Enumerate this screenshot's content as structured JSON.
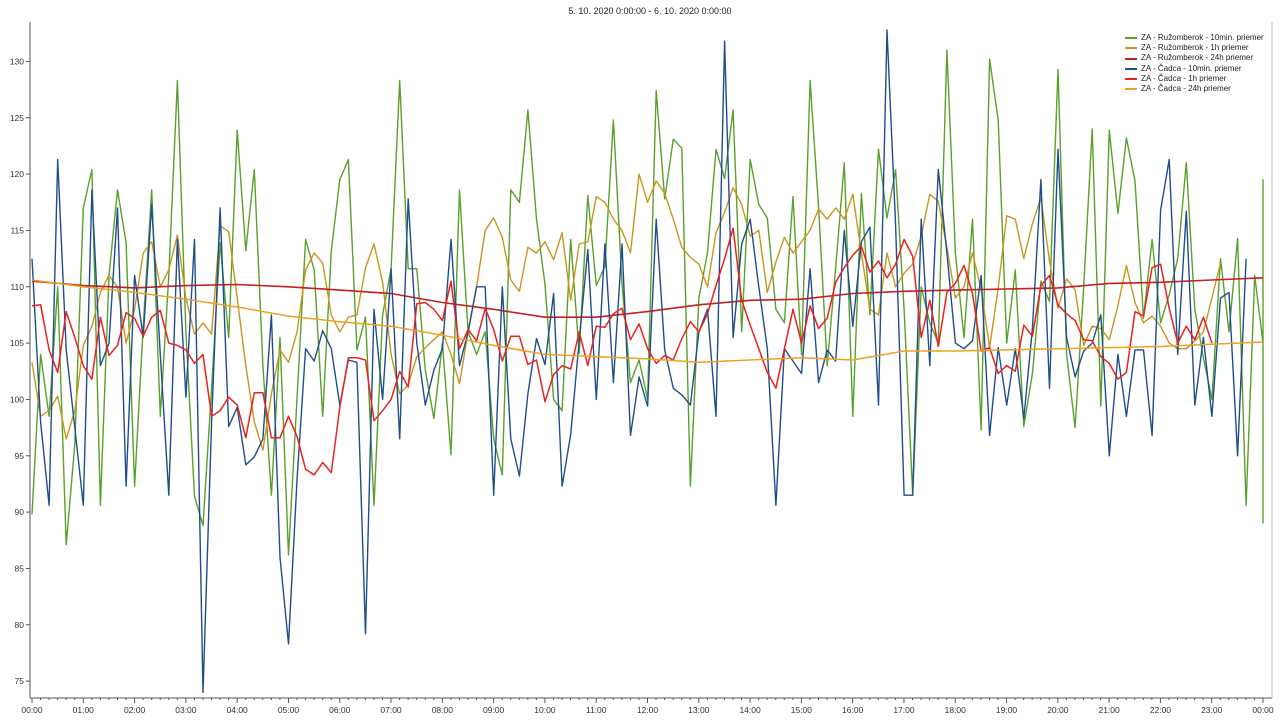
{
  "chart_data": {
    "type": "line",
    "title": "5. 10. 2020 0:00:00 - 6. 10. 2020 0:00:00",
    "xlabel": "",
    "ylabel": "",
    "xlim": [
      0,
      24
    ],
    "ylim": [
      73.5,
      133.5
    ],
    "x_ticks": [
      "00:00",
      "01:00",
      "02:00",
      "03:00",
      "04:00",
      "05:00",
      "06:00",
      "07:00",
      "08:00",
      "09:00",
      "10:00",
      "11:00",
      "12:00",
      "13:00",
      "14:00",
      "15:00",
      "16:00",
      "17:00",
      "18:00",
      "19:00",
      "20:00",
      "21:00",
      "22:00",
      "23:00",
      "00:00"
    ],
    "y_ticks": [
      75,
      80,
      85,
      90,
      95,
      100,
      105,
      110,
      115,
      120,
      125,
      130
    ],
    "grid": false,
    "legend_position": "top-right",
    "series": [
      {
        "name": "ZA - Ružomberok - 10min. priemer",
        "color": "#5aa02c",
        "width": 1.4,
        "interval_hours": 0.1667,
        "values": [
          89.8,
          104.0,
          98.5,
          110.0,
          87.1,
          96.0,
          117.0,
          120.4,
          90.6,
          111.0,
          118.6,
          113.9,
          92.3,
          106.5,
          118.6,
          98.5,
          111.0,
          128.3,
          106.0,
          91.4,
          88.8,
          101.0,
          113.9,
          105.5,
          123.9,
          113.2,
          120.4,
          103.0,
          91.5,
          105.5,
          86.2,
          100.2,
          114.2,
          111.5,
          98.5,
          113.2,
          119.5,
          121.3,
          104.4,
          107.3,
          90.6,
          107.5,
          111.6,
          128.3,
          111.6,
          111.6,
          102.6,
          98.3,
          105.0,
          95.1,
          118.6,
          106.0,
          104.0,
          106.0,
          96.5,
          93.3,
          118.6,
          117.5,
          125.7,
          116.0,
          110.2,
          100.0,
          99.0,
          114.2,
          104.1,
          118.1,
          110.1,
          111.8,
          124.8,
          110.3,
          101.5,
          103.5,
          100.0,
          127.4,
          117.8,
          123.1,
          122.3,
          92.3,
          109.0,
          113.0,
          122.2,
          119.6,
          125.7,
          106.0,
          121.3,
          117.3,
          116.1,
          108.0,
          106.8,
          118.0,
          104.0,
          128.3,
          117.0,
          103.0,
          111.7,
          121.0,
          98.5,
          118.3,
          107.5,
          122.2,
          116.1,
          120.4,
          108.0,
          91.5,
          110.0,
          106.8,
          105.0,
          131.0,
          113.0,
          105.5,
          116.0,
          97.3,
          130.2,
          124.8,
          105.0,
          111.5,
          97.6,
          102.3,
          110.5,
          108.7,
          129.3,
          104.0,
          97.5,
          110.0,
          124.0,
          99.4,
          123.9,
          116.5,
          123.2,
          119.4,
          107.2,
          114.2,
          106.8,
          109.3,
          112.5,
          121.0,
          108.0,
          103.7,
          100.0,
          112.5,
          106.0,
          114.3,
          90.6,
          111.0,
          105.0,
          116.0,
          106.1,
          119.5,
          115.0,
          89.0
        ]
      },
      {
        "name": "ZA - Ružomberok - 1h priemer",
        "color": "#c8961e",
        "width": 1.4,
        "interval_hours": 0.1667,
        "values": [
          103.3,
          98.5,
          99.0,
          100.3,
          96.5,
          99.0,
          104.8,
          106.5,
          109.5,
          111.0,
          110.0,
          105.0,
          108.0,
          113.0,
          114.0,
          110.0,
          111.5,
          114.6,
          109.0,
          105.8,
          106.8,
          105.8,
          115.4,
          114.9,
          109.0,
          103.0,
          98.0,
          95.5,
          100.5,
          104.4,
          103.3,
          106.0,
          111.5,
          113.0,
          112.1,
          107.5,
          106.0,
          107.3,
          107.5,
          111.7,
          113.8,
          110.4,
          104.0,
          100.5,
          101.3,
          103.8,
          104.6,
          105.3,
          106.0,
          104.0,
          101.4,
          106.0,
          110.0,
          115.0,
          116.1,
          114.4,
          110.6,
          109.6,
          113.5,
          113.0,
          114.0,
          112.4,
          114.8,
          108.8,
          113.8,
          114.0,
          118.0,
          117.5,
          116.0,
          115.0,
          113.0,
          120.0,
          117.5,
          119.4,
          118.3,
          116.0,
          113.5,
          112.6,
          112.0,
          110.0,
          114.8,
          116.6,
          118.8,
          117.3,
          114.5,
          115.0,
          109.5,
          112.2,
          114.4,
          113.0,
          114.0,
          115.0,
          116.9,
          116.0,
          117.0,
          116.0,
          118.2,
          113.0,
          108.0,
          107.5,
          113.0,
          110.0,
          111.2,
          112.0,
          114.5,
          118.2,
          117.6,
          113.5,
          109.0,
          110.0,
          113.0,
          109.8,
          104.6,
          109.9,
          116.3,
          116.0,
          112.5,
          115.6,
          117.9,
          112.3,
          108.1,
          110.7,
          109.7,
          104.8,
          106.5,
          106.3,
          105.3,
          108.3,
          111.9,
          108.6,
          106.8,
          107.4,
          106.5,
          105.0,
          104.5,
          104.5,
          105.2,
          106.0,
          109.0,
          112.1
        ]
      },
      {
        "name": "ZA - Ružomberok - 24h priemer",
        "color": "#c81e1e",
        "width": 1.6,
        "interval_hours": 1,
        "values": [
          110.5,
          110.1,
          109.9,
          110.1,
          110.2,
          110.0,
          109.7,
          109.4,
          108.6,
          108.0,
          107.3,
          107.3,
          107.8,
          108.4,
          108.8,
          108.9,
          109.4,
          109.6,
          109.7,
          109.8,
          109.9,
          110.3,
          110.4,
          110.6,
          110.8
        ]
      },
      {
        "name": "ZA - Čadca - 10min. priemer",
        "color": "#1f4e8c",
        "width": 1.4,
        "interval_hours": 0.1667,
        "values": [
          112.5,
          98.0,
          90.6,
          121.3,
          104.4,
          97.5,
          90.6,
          118.6,
          103.0,
          105.0,
          117.0,
          92.3,
          111.0,
          105.5,
          117.3,
          104.0,
          91.5,
          114.2,
          100.2,
          114.2,
          74.0,
          98.0,
          117.0,
          97.6,
          99.3,
          94.2,
          94.9,
          96.5,
          107.5,
          86.0,
          78.3,
          93.0,
          104.5,
          103.4,
          106.1,
          104.5,
          99.5,
          103.5,
          103.3,
          79.2,
          108.0,
          100.0,
          111.6,
          96.5,
          117.8,
          105.0,
          99.5,
          102.6,
          104.5,
          114.2,
          103.0,
          106.0,
          110.0,
          110.0,
          91.5,
          110.0,
          96.5,
          93.2,
          100.5,
          105.4,
          103.1,
          109.4,
          92.3,
          96.9,
          105.2,
          113.3,
          100.0,
          113.8,
          101.5,
          113.8,
          96.8,
          102.0,
          99.4,
          116.0,
          104.4,
          101.0,
          100.4,
          99.5,
          106.0,
          108.0,
          98.5,
          131.8,
          105.5,
          113.8,
          116.0,
          110.0,
          104.5,
          90.6,
          104.5,
          103.4,
          102.3,
          111.6,
          101.5,
          104.4,
          103.4,
          115.0,
          106.5,
          114.0,
          115.3,
          99.5,
          132.8,
          115.5,
          91.5,
          91.5,
          116.0,
          103.0,
          120.4,
          113.0,
          105.0,
          104.5,
          105.2,
          111.0,
          96.8,
          104.6,
          99.5,
          104.5,
          98.3,
          106.3,
          119.5,
          101.0,
          122.2,
          105.5,
          102.0,
          104.3,
          105.0,
          107.5,
          95.0,
          104.0,
          98.5,
          104.4,
          104.4,
          96.8,
          116.8,
          121.3,
          104.0,
          116.7,
          99.5,
          105.5,
          98.5,
          109.0,
          109.5,
          95.0,
          112.5
        ]
      },
      {
        "name": "ZA - Čadca - 1h priemer",
        "color": "#e8231e",
        "width": 1.5,
        "interval_hours": 0.1667,
        "values": [
          108.3,
          108.4,
          104.4,
          102.4,
          107.8,
          105.5,
          103.0,
          101.8,
          107.3,
          103.9,
          104.8,
          107.7,
          107.2,
          105.6,
          107.3,
          107.9,
          105.0,
          104.8,
          104.4,
          103.2,
          104.0,
          98.5,
          99.0,
          100.2,
          99.5,
          96.6,
          100.6,
          100.6,
          96.6,
          96.6,
          98.5,
          96.7,
          93.8,
          93.3,
          94.4,
          93.5,
          99.3,
          103.7,
          103.7,
          103.5,
          98.1,
          99.0,
          100.0,
          102.5,
          101.1,
          108.5,
          108.6,
          108.0,
          107.0,
          110.5,
          104.5,
          106.2,
          105.2,
          108.1,
          106.2,
          103.4,
          105.6,
          105.6,
          103.1,
          103.5,
          99.8,
          102.2,
          103.0,
          102.7,
          106.0,
          103.0,
          106.5,
          106.4,
          107.6,
          108.1,
          105.3,
          106.7,
          104.5,
          103.2,
          103.9,
          103.5,
          105.4,
          106.9,
          106.0,
          107.6,
          110.1,
          112.5,
          115.2,
          108.8,
          106.6,
          104.5,
          102.4,
          101.0,
          104.5,
          108.0,
          105.0,
          108.3,
          106.3,
          107.2,
          110.4,
          111.7,
          112.8,
          113.6,
          111.3,
          112.3,
          110.8,
          112.0,
          114.2,
          112.7,
          105.5,
          108.8,
          104.7,
          109.5,
          110.3,
          111.9,
          109.4,
          104.3,
          104.6,
          102.3,
          103.0,
          102.5,
          106.6,
          105.6,
          110.1,
          111.0,
          108.4,
          107.6,
          107.0,
          105.3,
          105.2,
          103.8,
          103.2,
          101.8,
          102.4,
          107.8,
          107.4,
          111.7,
          112.0,
          108.1,
          105.0,
          106.5,
          105.3,
          107.3,
          105.0
        ]
      },
      {
        "name": "ZA - Čadca - 24h priemer",
        "color": "#f0a020",
        "width": 1.5,
        "interval_hours": 1,
        "values": [
          110.6,
          110.0,
          109.5,
          108.9,
          108.2,
          107.4,
          106.9,
          106.5,
          105.7,
          104.8,
          104.0,
          103.8,
          103.6,
          103.3,
          103.5,
          103.7,
          103.5,
          104.3,
          104.3,
          104.4,
          104.5,
          104.6,
          104.7,
          104.9,
          105.1
        ]
      }
    ]
  }
}
